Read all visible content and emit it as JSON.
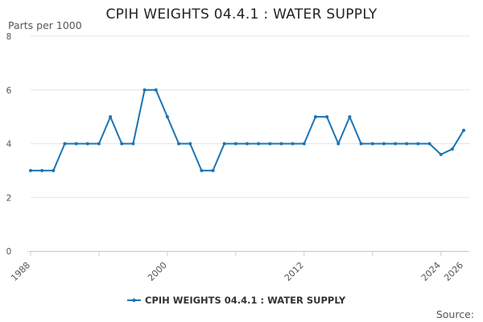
{
  "chart_data": {
    "type": "line",
    "title": "CPIH WEIGHTS 04.4.1 : WATER SUPPLY",
    "ylabel": "Parts per 1000",
    "xlabel": "",
    "ylim": [
      0,
      8
    ],
    "xlim": [
      1988,
      2026
    ],
    "yticks": [
      "0",
      "2",
      "4",
      "6",
      "8"
    ],
    "xticks": [
      "1988",
      "2000",
      "2012",
      "2024",
      "2026"
    ],
    "grid": true,
    "legend_position": "bottom",
    "series": [
      {
        "name": "CPIH WEIGHTS 04.4.1 : WATER SUPPLY",
        "color": "#1a75b5",
        "x": [
          1988,
          1989,
          1990,
          1991,
          1992,
          1993,
          1994,
          1995,
          1996,
          1997,
          1998,
          1999,
          2000,
          2001,
          2002,
          2003,
          2004,
          2005,
          2006,
          2007,
          2008,
          2009,
          2010,
          2011,
          2012,
          2013,
          2014,
          2015,
          2016,
          2017,
          2018,
          2019,
          2020,
          2021,
          2022,
          2023,
          2024,
          2025,
          2026
        ],
        "values": [
          3,
          3,
          3,
          4,
          4,
          4,
          4,
          5,
          4,
          4,
          6,
          6,
          5,
          4,
          4,
          3,
          3,
          4,
          4,
          4,
          4,
          4,
          4,
          4,
          4,
          5,
          5,
          4,
          5,
          4,
          4,
          4,
          4,
          4,
          4,
          4,
          3.6,
          3.8,
          4.5
        ]
      }
    ]
  },
  "source": "Source:"
}
